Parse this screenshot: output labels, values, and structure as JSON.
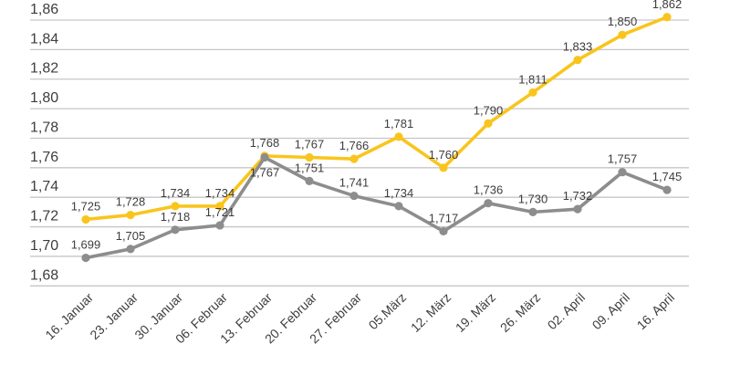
{
  "chart": {
    "background_color": "#ffffff",
    "grid_color": "#c6c6c6",
    "text_color": "#3d3d3d"
  },
  "chart_data": {
    "type": "line",
    "title": "",
    "xlabel": "",
    "ylabel": "",
    "legend": "none",
    "grid": true,
    "ylim": [
      1.68,
      1.872
    ],
    "y_ticks": {
      "values": [
        1.86,
        1.84,
        1.82,
        1.8,
        1.78,
        1.76,
        1.74,
        1.72,
        1.7,
        1.68
      ],
      "labels": [
        "1,86",
        "1,84",
        "1,82",
        "1,80",
        "1,78",
        "1,76",
        "1,74",
        "1,72",
        "1,70",
        "1,68"
      ]
    },
    "categories": [
      "16. Januar",
      "23. Januar",
      "30. Januar",
      "06. Februar",
      "13. Februar",
      "20. Februar",
      "27. Februar",
      "05.März",
      "12. März",
      "19. März",
      "26. März",
      "02. April",
      "09. April",
      "16. April"
    ],
    "series": [
      {
        "name": "yellow-series",
        "color": "#f9c51d",
        "values": [
          1.725,
          1.728,
          1.734,
          1.734,
          1.768,
          1.767,
          1.766,
          1.781,
          1.76,
          1.79,
          1.811,
          1.833,
          1.85,
          1.862
        ],
        "labels": [
          "1,725",
          "1,728",
          "1,734",
          "1,734",
          "1,768",
          "1,767",
          "1,766",
          "1,781",
          "1,760",
          "1,790",
          "1,811",
          "1,833",
          "1,850",
          "1,862"
        ],
        "label_below_indices": []
      },
      {
        "name": "gray-series",
        "color": "#8d8d8d",
        "values": [
          1.699,
          1.705,
          1.718,
          1.721,
          1.767,
          1.751,
          1.741,
          1.734,
          1.717,
          1.736,
          1.73,
          1.732,
          1.757,
          1.745
        ],
        "labels": [
          "1,699",
          "1,705",
          "1,718",
          "1,721",
          "1,767",
          "1,751",
          "1,741",
          "1,734",
          "1,717",
          "1,736",
          "1,730",
          "1,732",
          "1,757",
          "1,745"
        ],
        "label_below_indices": [
          4
        ]
      }
    ]
  }
}
